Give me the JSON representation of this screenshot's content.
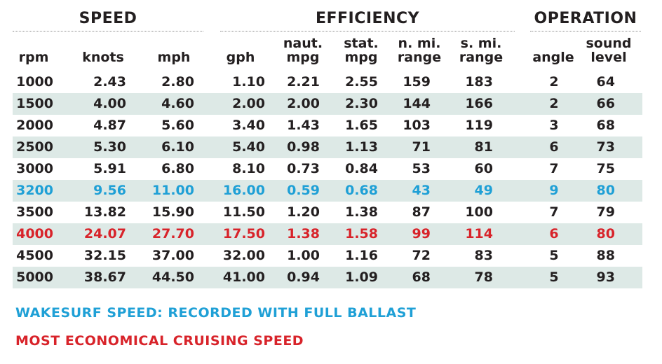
{
  "groups": {
    "speed": "SPEED",
    "efficiency": "EFFICIENCY",
    "operation": "OPERATION"
  },
  "columns": {
    "rpm": "rpm",
    "knots": "knots",
    "mph": "mph",
    "gph": "gph",
    "naut_mpg": "naut.\nmpg",
    "stat_mpg": "stat.\nmpg",
    "n_range": "n. mi.\nrange",
    "s_range": "s. mi.\nrange",
    "angle": "angle",
    "sound": "sound\nlevel"
  },
  "rows": [
    [
      "1000",
      "2.43",
      "2.80",
      "1.10",
      "2.21",
      "2.55",
      "159",
      "183",
      "2",
      "64"
    ],
    [
      "1500",
      "4.00",
      "4.60",
      "2.00",
      "2.00",
      "2.30",
      "144",
      "166",
      "2",
      "66"
    ],
    [
      "2000",
      "4.87",
      "5.60",
      "3.40",
      "1.43",
      "1.65",
      "103",
      "119",
      "3",
      "68"
    ],
    [
      "2500",
      "5.30",
      "6.10",
      "5.40",
      "0.98",
      "1.13",
      "71",
      "81",
      "6",
      "73"
    ],
    [
      "3000",
      "5.91",
      "6.80",
      "8.10",
      "0.73",
      "0.84",
      "53",
      "60",
      "7",
      "75"
    ],
    [
      "3200",
      "9.56",
      "11.00",
      "16.00",
      "0.59",
      "0.68",
      "43",
      "49",
      "9",
      "80"
    ],
    [
      "3500",
      "13.82",
      "15.90",
      "11.50",
      "1.20",
      "1.38",
      "87",
      "100",
      "7",
      "79"
    ],
    [
      "4000",
      "24.07",
      "27.70",
      "17.50",
      "1.38",
      "1.58",
      "99",
      "114",
      "6",
      "80"
    ],
    [
      "4500",
      "32.15",
      "37.00",
      "32.00",
      "1.00",
      "1.16",
      "72",
      "83",
      "5",
      "88"
    ],
    [
      "5000",
      "38.67",
      "44.50",
      "41.00",
      "0.94",
      "1.09",
      "68",
      "78",
      "5",
      "93"
    ]
  ],
  "row_highlight": [
    "",
    "",
    "",
    "",
    "",
    "blue",
    "",
    "red",
    "",
    ""
  ],
  "legend": {
    "wakesurf": "WAKESURF SPEED: RECORDED WITH FULL BALLAST",
    "economical": "MOST ECONOMICAL CRUISING SPEED"
  },
  "colors": {
    "text": "#231f20",
    "wakesurf_blue": "#1fa0d6",
    "economical_red": "#d8232a",
    "shade": "#dde9e6"
  }
}
